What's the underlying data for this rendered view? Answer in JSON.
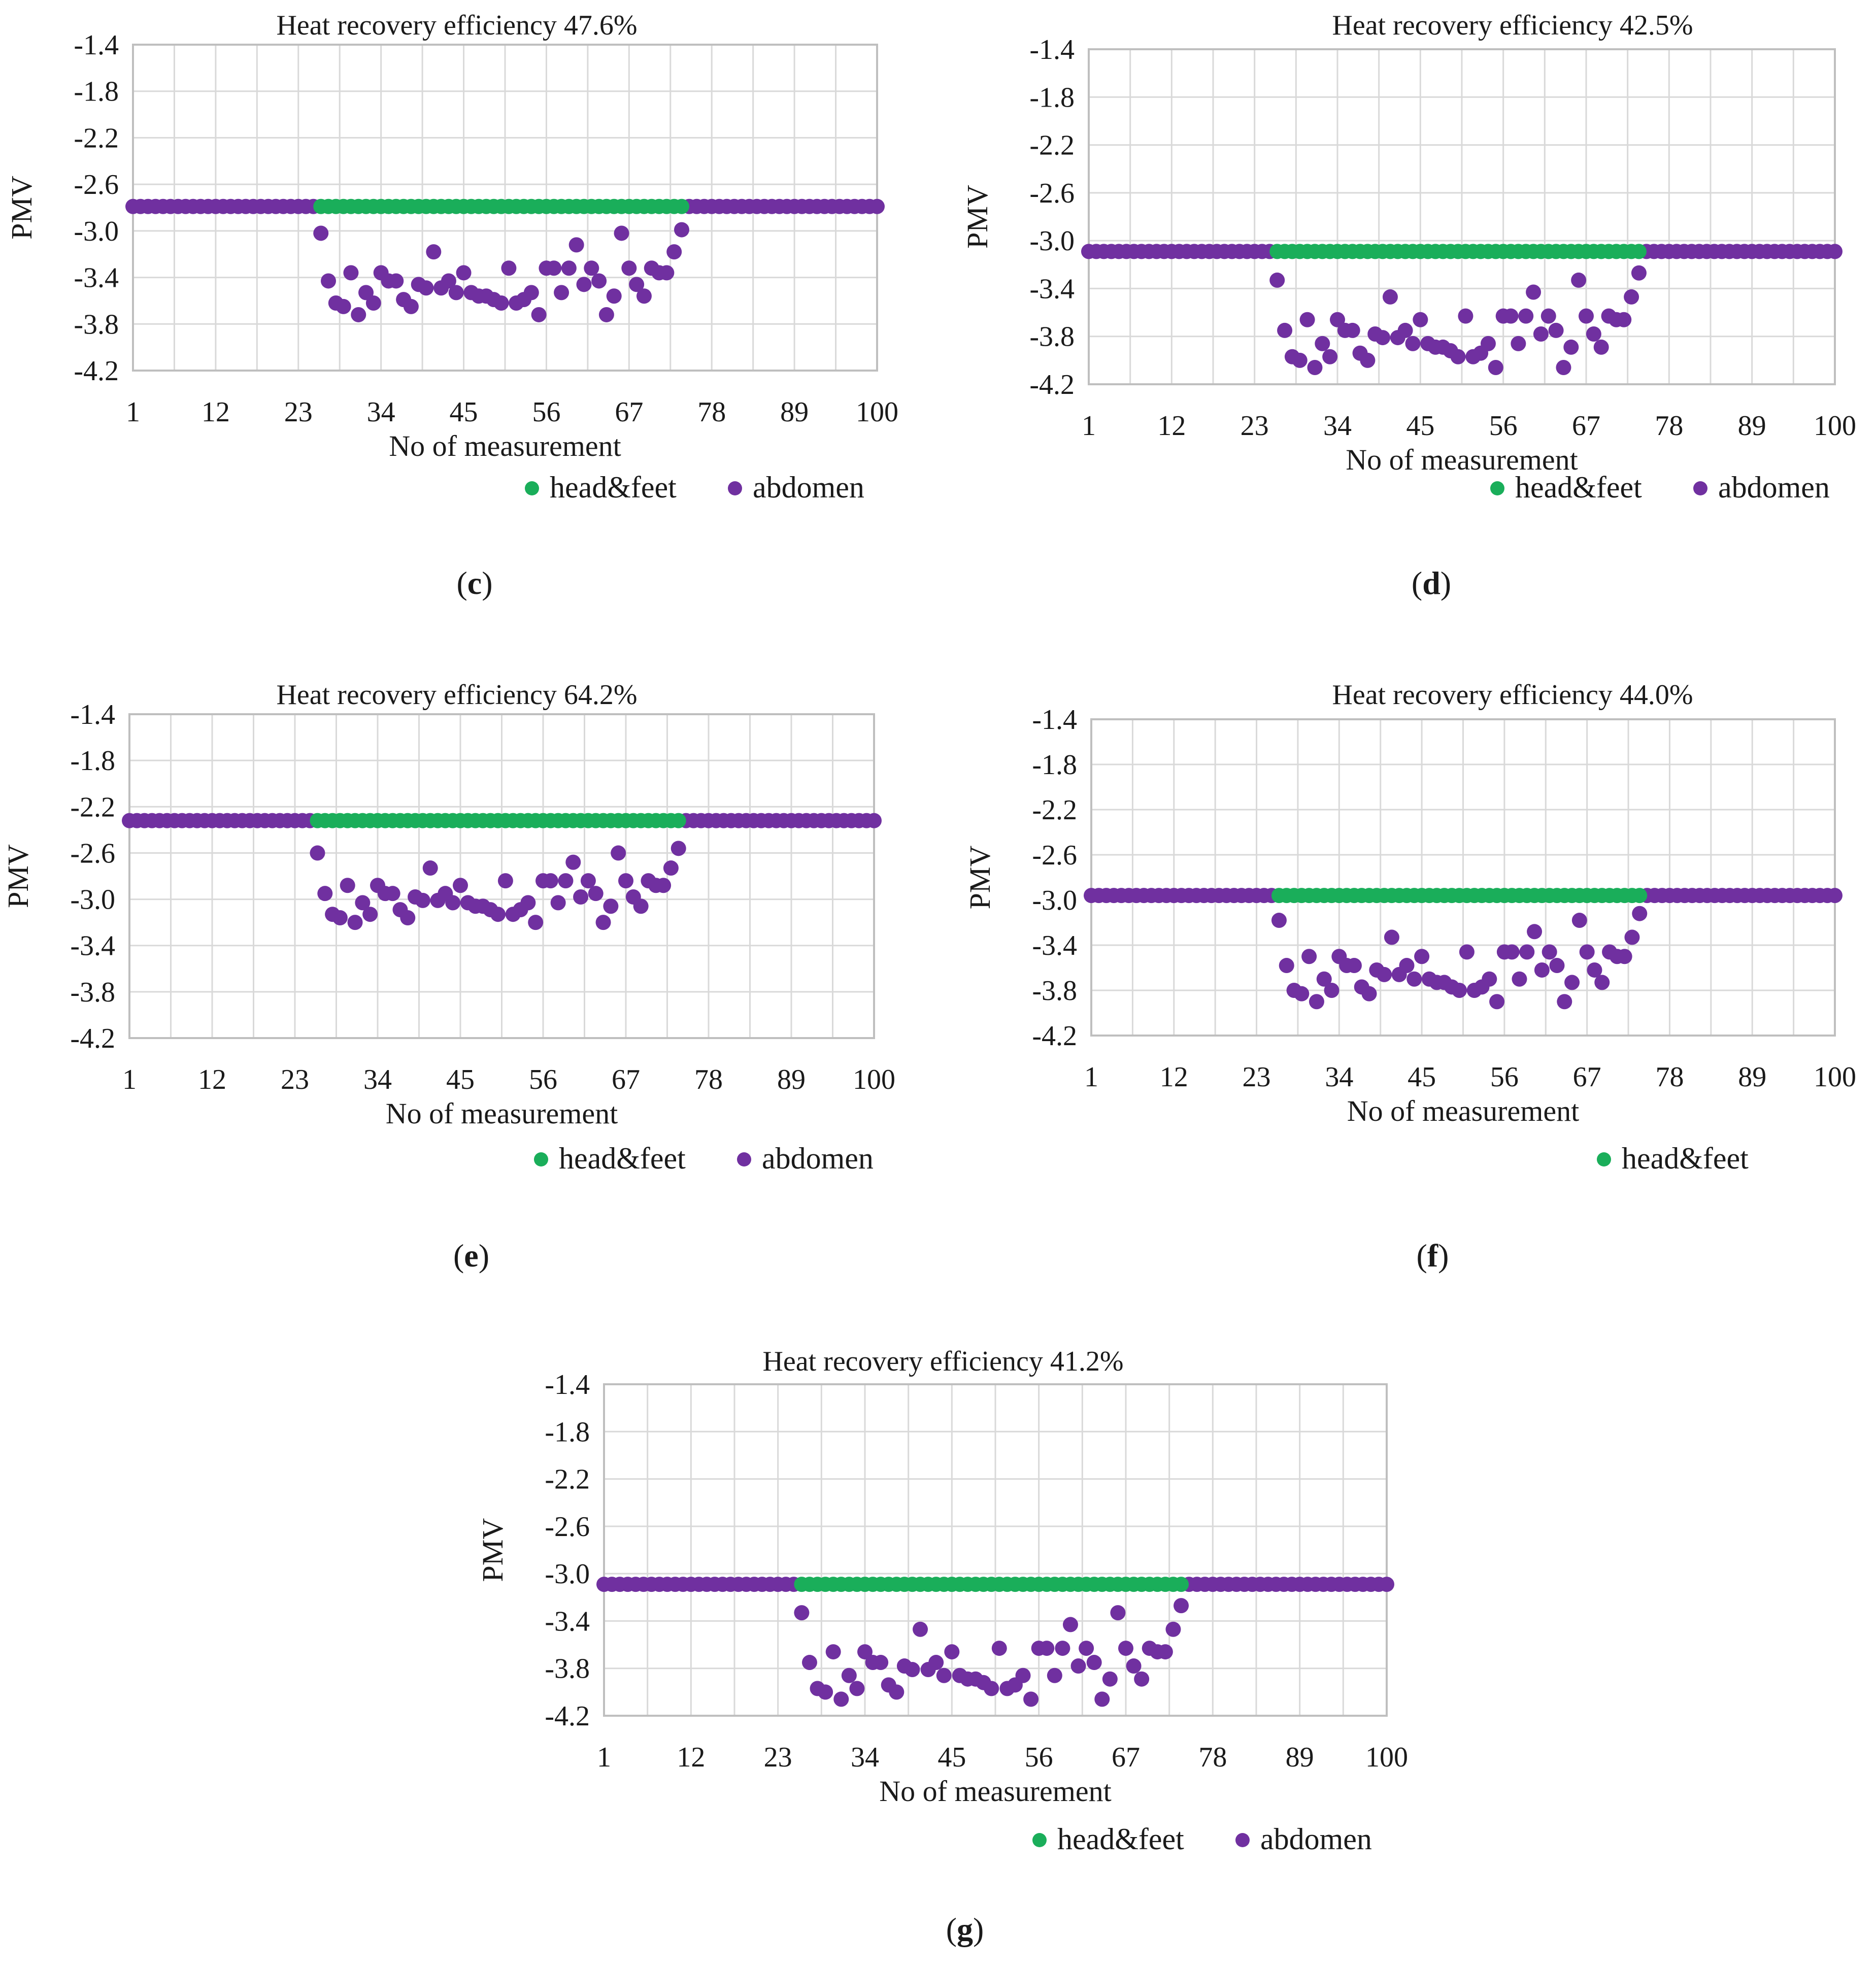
{
  "figure": {
    "panel_labels": [
      "c",
      "d",
      "e",
      "f",
      "g"
    ]
  },
  "colors": {
    "head_feet": "#1aae5a",
    "abdomen": "#7030a0",
    "grid": "#d9d9d9",
    "axis": "#bfbfbf"
  },
  "chart_data": [
    {
      "panel": "c",
      "type": "scatter",
      "title": "Heat recovery efficiency 47.6%",
      "xlabel": "No of measurement",
      "ylabel": "PMV",
      "xlim": [
        1,
        100
      ],
      "ylim": [
        -4.2,
        -1.4
      ],
      "xticks": [
        "1",
        "12",
        "23",
        "34",
        "45",
        "56",
        "67",
        "78",
        "89",
        "100"
      ],
      "yticks": [
        "-1.4",
        "-1.8",
        "-2.2",
        "-2.6",
        "-3.0",
        "-3.4",
        "-3.8",
        "-4.2"
      ],
      "legend": [
        "head&feet",
        "abdomen"
      ],
      "series": [
        {
          "name": "head&feet",
          "x_start": 26,
          "x_end": 74,
          "value": -2.79
        },
        {
          "name": "abdomen",
          "baseline": -2.79,
          "active_start": 26,
          "active_end": 74,
          "active_values": [
            -3.02,
            -3.43,
            -3.62,
            -3.65,
            -3.36,
            -3.72,
            -3.53,
            -3.62,
            -3.36,
            -3.43,
            -3.43,
            -3.59,
            -3.65,
            -3.46,
            -3.49,
            -3.18,
            -3.49,
            -3.43,
            -3.53,
            -3.36,
            -3.53,
            -3.56,
            -3.56,
            -3.59,
            -3.62,
            -3.32,
            -3.62,
            -3.59,
            -3.53,
            -3.72,
            -3.32,
            -3.32,
            -3.53,
            -3.32,
            -3.12,
            -3.46,
            -3.32,
            -3.43,
            -3.72,
            -3.56,
            -3.02,
            -3.32,
            -3.46,
            -3.56,
            -3.32,
            -3.36,
            -3.36,
            -3.18,
            -2.99
          ]
        }
      ]
    },
    {
      "panel": "d",
      "type": "scatter",
      "title": "Heat recovery efficiency 42.5%",
      "xlabel": "No of measurement",
      "ylabel": "PMV",
      "xlim": [
        1,
        100
      ],
      "ylim": [
        -4.2,
        -1.4
      ],
      "xticks": [
        "1",
        "12",
        "23",
        "34",
        "45",
        "56",
        "67",
        "78",
        "89",
        "100"
      ],
      "yticks": [
        "-1.4",
        "-1.8",
        "-2.2",
        "-2.6",
        "-3.0",
        "-3.4",
        "-3.8",
        "-4.2"
      ],
      "legend": [
        "head&feet",
        "abdomen"
      ],
      "series": [
        {
          "name": "head&feet",
          "x_start": 26,
          "x_end": 74,
          "value": -3.09
        },
        {
          "name": "abdomen",
          "baseline": -3.09,
          "active_start": 26,
          "active_end": 74,
          "active_values": [
            -3.33,
            -3.75,
            -3.97,
            -4.0,
            -3.66,
            -4.06,
            -3.86,
            -3.97,
            -3.66,
            -3.75,
            -3.75,
            -3.94,
            -4.0,
            -3.78,
            -3.81,
            -3.47,
            -3.81,
            -3.75,
            -3.86,
            -3.66,
            -3.86,
            -3.89,
            -3.89,
            -3.92,
            -3.97,
            -3.63,
            -3.97,
            -3.94,
            -3.86,
            -4.06,
            -3.63,
            -3.63,
            -3.86,
            -3.63,
            -3.43,
            -3.78,
            -3.63,
            -3.75,
            -4.06,
            -3.89,
            -3.33,
            -3.63,
            -3.78,
            -3.89,
            -3.63,
            -3.66,
            -3.66,
            -3.47,
            -3.27
          ]
        }
      ]
    },
    {
      "panel": "e",
      "type": "scatter",
      "title": "Heat recovery efficiency 64.2%",
      "xlabel": "No of measurement",
      "ylabel": "PMV",
      "xlim": [
        1,
        100
      ],
      "ylim": [
        -4.2,
        -1.4
      ],
      "xticks": [
        "1",
        "12",
        "23",
        "34",
        "45",
        "56",
        "67",
        "78",
        "89",
        "100"
      ],
      "yticks": [
        "-1.4",
        "-1.8",
        "-2.2",
        "-2.6",
        "-3.0",
        "-3.4",
        "-3.8",
        "-4.2"
      ],
      "legend": [
        "head&feet",
        "abdomen"
      ],
      "series": [
        {
          "name": "head&feet",
          "x_start": 26,
          "x_end": 74,
          "value": -2.32
        },
        {
          "name": "abdomen",
          "baseline": -2.32,
          "active_start": 26,
          "active_end": 74,
          "active_values": [
            -2.6,
            -2.95,
            -3.13,
            -3.16,
            -2.88,
            -3.2,
            -3.03,
            -3.13,
            -2.88,
            -2.95,
            -2.95,
            -3.09,
            -3.16,
            -2.98,
            -3.01,
            -2.73,
            -3.01,
            -2.95,
            -3.03,
            -2.88,
            -3.03,
            -3.06,
            -3.06,
            -3.09,
            -3.13,
            -2.84,
            -3.13,
            -3.09,
            -3.03,
            -3.2,
            -2.84,
            -2.84,
            -3.03,
            -2.84,
            -2.68,
            -2.98,
            -2.84,
            -2.95,
            -3.2,
            -3.06,
            -2.6,
            -2.84,
            -2.98,
            -3.06,
            -2.84,
            -2.88,
            -2.88,
            -2.73,
            -2.56
          ]
        }
      ]
    },
    {
      "panel": "f",
      "type": "scatter",
      "title": "Heat recovery efficiency 44.0%",
      "xlabel": "No of measurement",
      "ylabel": "PMV",
      "xlim": [
        1,
        100
      ],
      "ylim": [
        -4.2,
        -1.4
      ],
      "xticks": [
        "1",
        "12",
        "23",
        "34",
        "45",
        "56",
        "67",
        "78",
        "89",
        "100"
      ],
      "yticks": [
        "-1.4",
        "-1.8",
        "-2.2",
        "-2.6",
        "-3.0",
        "-3.4",
        "-3.8",
        "-4.2"
      ],
      "legend": [
        "head&feet"
      ],
      "series": [
        {
          "name": "head&feet",
          "x_start": 26,
          "x_end": 74,
          "value": -2.96
        },
        {
          "name": "abdomen",
          "baseline": -2.96,
          "active_start": 26,
          "active_end": 74,
          "active_values": [
            -3.18,
            -3.58,
            -3.8,
            -3.83,
            -3.5,
            -3.9,
            -3.7,
            -3.8,
            -3.5,
            -3.58,
            -3.58,
            -3.77,
            -3.83,
            -3.62,
            -3.66,
            -3.33,
            -3.66,
            -3.58,
            -3.7,
            -3.5,
            -3.7,
            -3.73,
            -3.73,
            -3.77,
            -3.8,
            -3.46,
            -3.8,
            -3.77,
            -3.7,
            -3.9,
            -3.46,
            -3.46,
            -3.7,
            -3.46,
            -3.28,
            -3.62,
            -3.46,
            -3.58,
            -3.9,
            -3.73,
            -3.18,
            -3.46,
            -3.62,
            -3.73,
            -3.46,
            -3.5,
            -3.5,
            -3.33,
            -3.12
          ]
        }
      ]
    },
    {
      "panel": "g",
      "type": "scatter",
      "title": "Heat recovery efficiency 41.2%",
      "xlabel": "No of measurement",
      "ylabel": "PMV",
      "xlim": [
        1,
        100
      ],
      "ylim": [
        -4.2,
        -1.4
      ],
      "xticks": [
        "1",
        "12",
        "23",
        "34",
        "45",
        "56",
        "67",
        "78",
        "89",
        "100"
      ],
      "yticks": [
        "-1.4",
        "-1.8",
        "-2.2",
        "-2.6",
        "-3.0",
        "-3.4",
        "-3.8",
        "-4.2"
      ],
      "legend": [
        "head&feet",
        "abdomen"
      ],
      "series": [
        {
          "name": "head&feet",
          "x_start": 26,
          "x_end": 74,
          "value": -3.09
        },
        {
          "name": "abdomen",
          "baseline": -3.09,
          "active_start": 26,
          "active_end": 74,
          "active_values": [
            -3.33,
            -3.75,
            -3.97,
            -4.0,
            -3.66,
            -4.06,
            -3.86,
            -3.97,
            -3.66,
            -3.75,
            -3.75,
            -3.94,
            -4.0,
            -3.78,
            -3.81,
            -3.47,
            -3.81,
            -3.75,
            -3.86,
            -3.66,
            -3.86,
            -3.89,
            -3.89,
            -3.92,
            -3.97,
            -3.63,
            -3.97,
            -3.94,
            -3.86,
            -4.06,
            -3.63,
            -3.63,
            -3.86,
            -3.63,
            -3.43,
            -3.78,
            -3.63,
            -3.75,
            -4.06,
            -3.89,
            -3.33,
            -3.63,
            -3.78,
            -3.89,
            -3.63,
            -3.66,
            -3.66,
            -3.47,
            -3.27
          ]
        }
      ]
    }
  ]
}
